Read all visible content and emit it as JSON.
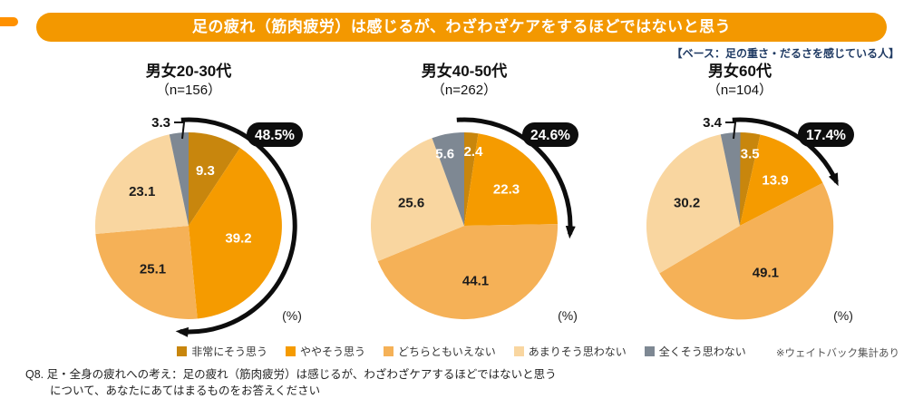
{
  "banner": {
    "title": "足の疲れ（筋肉疲労）は感じるが、わざわざケアをするほどではないと思う",
    "bg_color": "#f39800"
  },
  "base_note": "【ベース：足の重さ・だるさを感じている人】",
  "legend": {
    "items": [
      {
        "label": "非常にそう思う",
        "color": "#c8860d"
      },
      {
        "label": "ややそう思う",
        "color": "#f59b00"
      },
      {
        "label": "どちらともいえない",
        "color": "#f5b157"
      },
      {
        "label": "あまりそう思わない",
        "color": "#f9d6a0"
      },
      {
        "label": "全くそう思わない",
        "color": "#7e8893"
      }
    ]
  },
  "footer": {
    "weight_note": "※ウェイトバック集計あり",
    "question_line1": "Q8. 足・全身の疲れへの考え：足の疲れ（筋肉疲労）は感じるが、わざわざケアするほどではないと思う",
    "question_line2": "について、あなたにあてはまるものをお答えください"
  },
  "chart_data": {
    "type": "pie",
    "unit_label": "(%)",
    "categories": [
      "非常にそう思う",
      "ややそう思う",
      "どちらともいえない",
      "あまりそう思わない",
      "全くそう思わない"
    ],
    "colors": [
      "#c8860d",
      "#f59b00",
      "#f5b157",
      "#f9d6a0",
      "#7e8893"
    ],
    "badge_color": "#0d0d0d",
    "charts": [
      {
        "title": "男女20-30代",
        "n_label": "（n=156）",
        "values": [
          9.3,
          39.2,
          25.1,
          23.1,
          3.3
        ],
        "agree_total": 48.5,
        "agree_total_label": "48.5%"
      },
      {
        "title": "男女40-50代",
        "n_label": "（n=262）",
        "values": [
          2.4,
          22.3,
          44.1,
          25.6,
          5.6
        ],
        "agree_total": 24.6,
        "agree_total_label": "24.6%"
      },
      {
        "title": "男女60代",
        "n_label": "（n=104）",
        "values": [
          3.5,
          13.9,
          49.1,
          30.2,
          3.4
        ],
        "agree_total": 17.4,
        "agree_total_label": "17.4%"
      }
    ]
  }
}
